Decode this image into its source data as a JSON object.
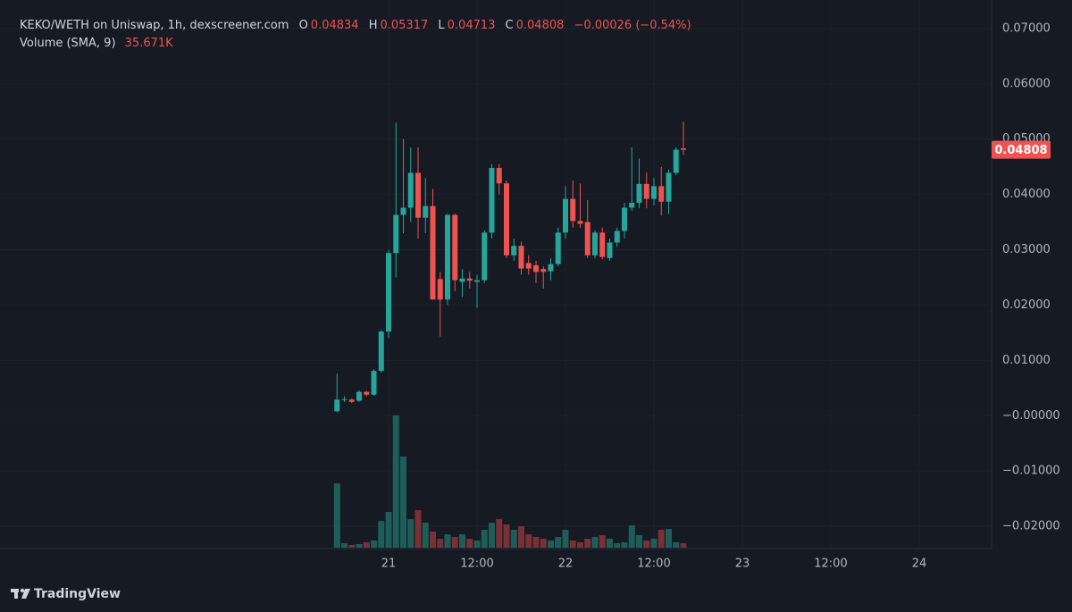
{
  "chart_data": {
    "type": "candlestick",
    "title": "KEKO/WETH on Uniswap, 1h, dexscreener.com",
    "ohlc_labels": [
      "O",
      "H",
      "L",
      "C"
    ],
    "change": "−0.00026 (−0.54%)",
    "volume_title": "Volume (SMA, 9)",
    "volume_sma": "35.671K",
    "brand": "TradingView",
    "up_color": "#26a69a",
    "down_color": "#ef5350",
    "volume_up_color": "#1d5f58",
    "volume_down_color": "#7a3036",
    "grid": true,
    "x": [
      17,
      18,
      19,
      20,
      21,
      22,
      23,
      24,
      25,
      26,
      27,
      28,
      29,
      30,
      31,
      32,
      33,
      34,
      35,
      36,
      37,
      38,
      39,
      40,
      41,
      42,
      43,
      44,
      45,
      46,
      47,
      48,
      49,
      50,
      51,
      52,
      53,
      54,
      55,
      56,
      57,
      58,
      59,
      60,
      61,
      62,
      63,
      64
    ],
    "open": [
      0.0008,
      0.0029,
      0.0029,
      0.0027,
      0.0043,
      0.0038,
      0.0081,
      0.0152,
      0.0294,
      0.0363,
      0.0376,
      0.0439,
      0.0358,
      0.0379,
      0.0247,
      0.021,
      0.0363,
      0.0242,
      0.0248,
      0.0242,
      0.0245,
      0.0331,
      0.0448,
      0.042,
      0.029,
      0.0307,
      0.0276,
      0.0272,
      0.0265,
      0.0261,
      0.0274,
      0.0331,
      0.0392,
      0.0352,
      0.035,
      0.029,
      0.0331,
      0.0285,
      0.0313,
      0.0334,
      0.0376,
      0.0385,
      0.0419,
      0.0392,
      0.0415,
      0.0387,
      0.0439,
      0.04834
    ],
    "high": [
      0.0076,
      0.0035,
      0.0031,
      0.0046,
      0.0045,
      0.0084,
      0.0155,
      0.03,
      0.053,
      0.05,
      0.0485,
      0.0485,
      0.043,
      0.041,
      0.026,
      0.0365,
      0.0365,
      0.0265,
      0.026,
      0.0255,
      0.0335,
      0.0455,
      0.0455,
      0.0425,
      0.032,
      0.0315,
      0.029,
      0.028,
      0.027,
      0.0285,
      0.034,
      0.0415,
      0.0425,
      0.042,
      0.039,
      0.0335,
      0.034,
      0.032,
      0.034,
      0.0385,
      0.0485,
      0.0465,
      0.044,
      0.043,
      0.045,
      0.0445,
      0.0485,
      0.05317
    ],
    "low": [
      0.0006,
      0.0025,
      0.0023,
      0.0025,
      0.0035,
      0.0036,
      0.0078,
      0.014,
      0.025,
      0.033,
      0.035,
      0.032,
      0.033,
      0.021,
      0.0143,
      0.02,
      0.0225,
      0.0215,
      0.023,
      0.0195,
      0.024,
      0.032,
      0.04,
      0.0285,
      0.028,
      0.0255,
      0.0255,
      0.024,
      0.023,
      0.0245,
      0.027,
      0.032,
      0.034,
      0.034,
      0.0285,
      0.0285,
      0.0283,
      0.028,
      0.0305,
      0.032,
      0.037,
      0.0375,
      0.0375,
      0.038,
      0.0362,
      0.0365,
      0.0435,
      0.04713
    ],
    "close": [
      0.0029,
      0.003,
      0.0025,
      0.0043,
      0.0038,
      0.0081,
      0.0152,
      0.0294,
      0.0363,
      0.0376,
      0.0439,
      0.0358,
      0.0379,
      0.021,
      0.021,
      0.0363,
      0.0245,
      0.0248,
      0.0244,
      0.0245,
      0.0331,
      0.0448,
      0.042,
      0.029,
      0.0307,
      0.0266,
      0.0266,
      0.026,
      0.026,
      0.0274,
      0.0331,
      0.0392,
      0.0352,
      0.0347,
      0.029,
      0.0331,
      0.0287,
      0.0313,
      0.0334,
      0.0376,
      0.0385,
      0.0419,
      0.0392,
      0.0415,
      0.0387,
      0.0439,
      0.0481,
      0.04808
    ],
    "volume": [
      200880,
      13950,
      8370,
      11160,
      16740,
      22320,
      83700,
      111600,
      412920,
      284580,
      89280,
      117180,
      78120,
      50220,
      27900,
      41850,
      33480,
      41850,
      27900,
      22320,
      55800,
      78120,
      89280,
      72540,
      55800,
      66960,
      41850,
      33480,
      27900,
      22320,
      33480,
      55800,
      22320,
      16740,
      27900,
      33480,
      39060,
      27900,
      13950,
      16740,
      69750,
      39060,
      22320,
      27900,
      55800,
      58590,
      16740,
      13950
    ],
    "xlim": [
      -28.73,
      105.82
    ],
    "xticks": [
      {
        "value": 24,
        "label": "21"
      },
      {
        "value": 36,
        "label": "12:00"
      },
      {
        "value": 48,
        "label": "22"
      },
      {
        "value": 60,
        "label": "12:00"
      },
      {
        "value": 72,
        "label": "23"
      },
      {
        "value": 84,
        "label": "12:00"
      },
      {
        "value": 96,
        "label": "24"
      }
    ],
    "ylim": [
      -0.02403,
      0.07516
    ],
    "yticks": [
      {
        "value": -0.02,
        "label": "−0.02000"
      },
      {
        "value": -0.01,
        "label": "−0.01000"
      },
      {
        "value": 0,
        "label": "−0.00000"
      },
      {
        "value": 0.01,
        "label": "0.01000"
      },
      {
        "value": 0.02,
        "label": "0.02000"
      },
      {
        "value": 0.03,
        "label": "0.03000"
      },
      {
        "value": 0.04,
        "label": "0.04000"
      },
      {
        "value": 0.05,
        "label": "0.05000"
      },
      {
        "value": 0.06,
        "label": "0.06000"
      },
      {
        "value": 0.07,
        "label": "0.07000"
      }
    ]
  }
}
